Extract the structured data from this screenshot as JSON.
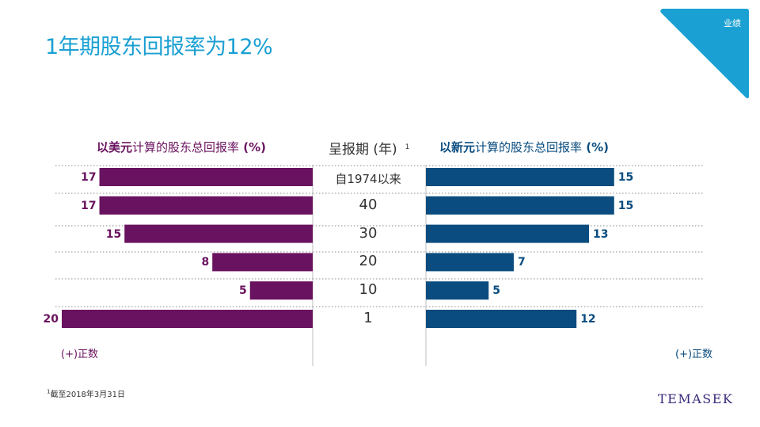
{
  "page": {
    "title": "1年期股东回报率为12%",
    "section_tag": "业绩",
    "footnote_marker": "1",
    "footnote": "截至2018年3月31日",
    "logo": "TEMASEK",
    "colors": {
      "usd": "#69125f",
      "sgd": "#0a4c7f",
      "accent": "#1aa0d2"
    }
  },
  "headers": {
    "left_bold_1": "以美元",
    "left_light": "计算的股东总回报率",
    "left_bold_2": " (%)",
    "middle": "呈报期 (年)",
    "middle_sup": "1",
    "right_bold_1": "以新元",
    "right_light": "计算的股东总回报率",
    "right_bold_2": " (%)"
  },
  "legend": {
    "left": "(+)正数",
    "right": "(+)正数"
  },
  "chart_data": {
    "type": "bar",
    "orientation": "horizontal",
    "categories": [
      "自1974以来",
      "40",
      "30",
      "20",
      "10",
      "1"
    ],
    "series": [
      {
        "name": "以美元计算的股东总回报率 (%)",
        "values": [
          17,
          17,
          15,
          8,
          5,
          20
        ]
      },
      {
        "name": "以新元计算的股东总回报率 (%)",
        "values": [
          15,
          15,
          13,
          7,
          5,
          12
        ]
      }
    ],
    "xlim": [
      0,
      20
    ]
  }
}
